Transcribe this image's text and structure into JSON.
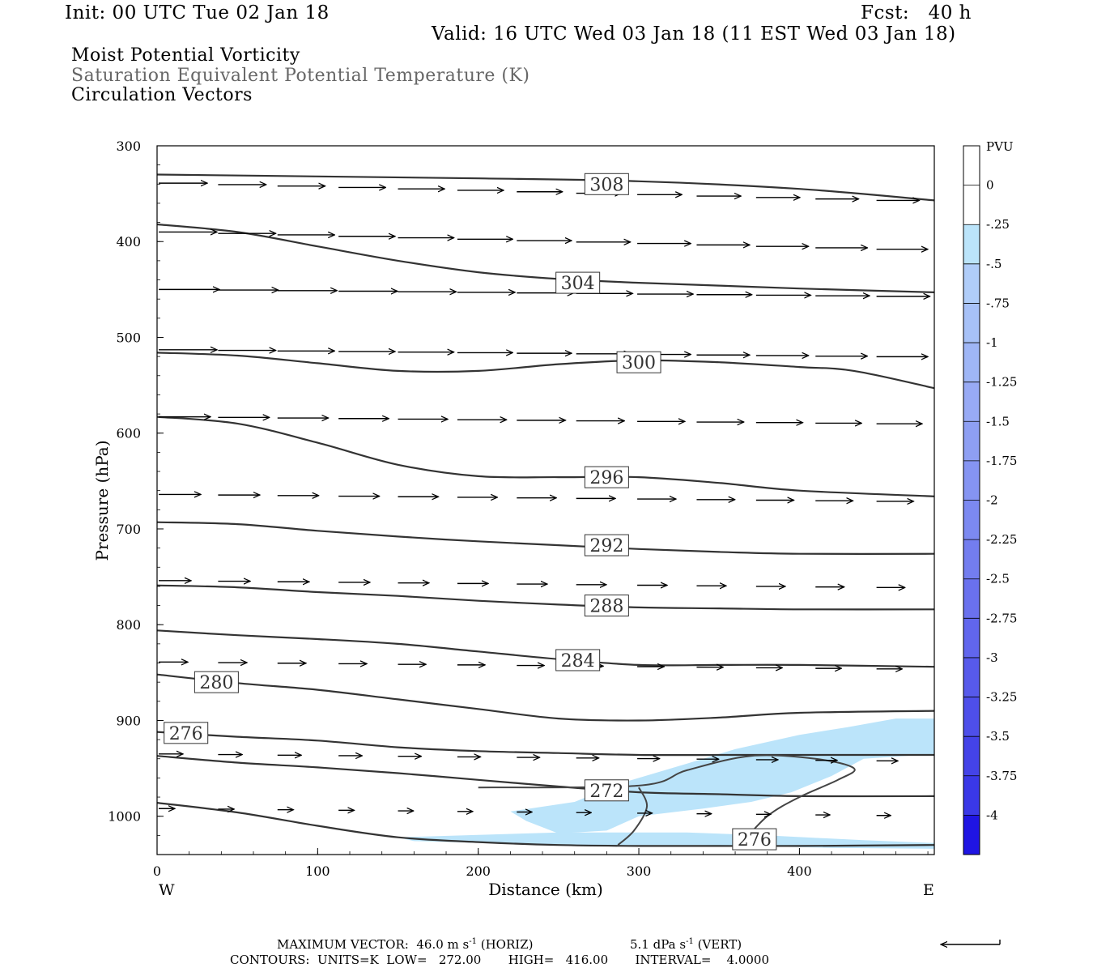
{
  "header": {
    "init": "Init: 00 UTC Tue 02 Jan 18",
    "fcst": "Fcst:   40 h",
    "valid": "Valid: 16 UTC Wed 03 Jan 18 (11 EST Wed 03 Jan 18)",
    "field1": "Moist Potential Vorticity",
    "field2": "Saturation Equivalent Potential Temperature (K)",
    "field3": "Circulation Vectors"
  },
  "footer": {
    "max_vector": "MAXIMUM VECTOR:  46.0 m s",
    "max_vector_exp": "-1",
    "max_vector_h": " (HORIZ)",
    "max_vector_v": "5.1 dPa s",
    "max_vector_v_exp": "-1",
    "max_vector_v2": " (VERT)",
    "contours": "CONTOURS:  UNITS=K  LOW=   272.00       HIGH=   416.00       INTERVAL=    4.0000"
  },
  "chart_data": {
    "type": "contour",
    "title": "Moist Potential Vorticity / Saturation Equivalent Potential Temperature (K) / Circulation Vectors",
    "xlabel": "Distance (km)",
    "ylabel": "Pressure (hPa)",
    "xlim": [
      0,
      484
    ],
    "ylim": [
      300,
      1040
    ],
    "y_scale": "linear (inverted)",
    "x_ticks": [
      "0",
      "100",
      "200",
      "300",
      "400"
    ],
    "y_ticks": [
      "300",
      "400",
      "500",
      "600",
      "700",
      "800",
      "900",
      "1000"
    ],
    "x_end_labels": {
      "left": "W",
      "right": "E"
    },
    "colorbar": {
      "label": "PVU",
      "ticks": [
        "0",
        "-.25",
        "-.5",
        "-.75",
        "-1",
        "-1.25",
        "-1.5",
        "-1.75",
        "-2",
        "-2.25",
        "-2.5",
        "-2.75",
        "-3",
        "-3.25",
        "-3.5",
        "-3.75",
        "-4"
      ],
      "colors": [
        "#ffffff",
        "#ffffff",
        "#bbe4fa",
        "#b0cdf9",
        "#a7c1f7",
        "#9fb6f6",
        "#98aaf5",
        "#8e9ff3",
        "#8594f2",
        "#7c89f1",
        "#737def",
        "#6a71ee",
        "#6166ed",
        "#575aeb",
        "#4e4fea",
        "#4443e8",
        "#3a38e7",
        "#1f15e3"
      ]
    },
    "theta_contours": [
      {
        "label": "308",
        "points": [
          [
            0,
            330
          ],
          [
            100,
            332
          ],
          [
            200,
            334
          ],
          [
            300,
            337
          ],
          [
            400,
            345
          ],
          [
            484,
            357
          ]
        ]
      },
      {
        "label": "304",
        "points": [
          [
            0,
            382
          ],
          [
            50,
            390
          ],
          [
            100,
            405
          ],
          [
            150,
            420
          ],
          [
            200,
            432
          ],
          [
            250,
            439
          ],
          [
            300,
            443
          ],
          [
            350,
            446
          ],
          [
            400,
            449
          ],
          [
            484,
            453
          ]
        ]
      },
      {
        "label": "300",
        "points": [
          [
            0,
            516
          ],
          [
            50,
            519
          ],
          [
            100,
            527
          ],
          [
            150,
            535
          ],
          [
            200,
            535
          ],
          [
            250,
            528
          ],
          [
            300,
            524
          ],
          [
            350,
            526
          ],
          [
            400,
            531
          ],
          [
            434,
            535
          ],
          [
            484,
            553
          ]
        ]
      },
      {
        "label": "296",
        "points": [
          [
            0,
            583
          ],
          [
            50,
            590
          ],
          [
            100,
            610
          ],
          [
            150,
            633
          ],
          [
            200,
            645
          ],
          [
            250,
            646
          ],
          [
            300,
            646
          ],
          [
            350,
            652
          ],
          [
            400,
            660
          ],
          [
            484,
            666
          ]
        ]
      },
      {
        "label": "292",
        "points": [
          [
            0,
            693
          ],
          [
            50,
            695
          ],
          [
            100,
            702
          ],
          [
            150,
            708
          ],
          [
            200,
            713
          ],
          [
            250,
            717
          ],
          [
            300,
            721
          ],
          [
            350,
            724
          ],
          [
            400,
            726
          ],
          [
            484,
            726
          ]
        ]
      },
      {
        "label": "288",
        "points": [
          [
            0,
            759
          ],
          [
            50,
            761
          ],
          [
            100,
            766
          ],
          [
            150,
            770
          ],
          [
            200,
            775
          ],
          [
            250,
            779
          ],
          [
            300,
            782
          ],
          [
            350,
            783
          ],
          [
            400,
            784
          ],
          [
            484,
            784
          ]
        ]
      },
      {
        "label": "284",
        "points": [
          [
            0,
            806
          ],
          [
            50,
            811
          ],
          [
            100,
            815
          ],
          [
            150,
            820
          ],
          [
            200,
            828
          ],
          [
            250,
            836
          ],
          [
            300,
            842
          ],
          [
            350,
            842
          ],
          [
            400,
            842
          ],
          [
            484,
            844
          ]
        ]
      },
      {
        "label": "280",
        "points": [
          [
            0,
            852
          ],
          [
            50,
            861
          ],
          [
            100,
            868
          ],
          [
            150,
            878
          ],
          [
            200,
            888
          ],
          [
            250,
            898
          ],
          [
            300,
            900
          ],
          [
            350,
            897
          ],
          [
            400,
            892
          ],
          [
            484,
            890
          ]
        ]
      },
      {
        "label": "276",
        "points": [
          [
            0,
            912
          ],
          [
            50,
            917
          ],
          [
            100,
            921
          ],
          [
            150,
            928
          ],
          [
            200,
            932
          ],
          [
            250,
            934
          ],
          [
            300,
            936
          ],
          [
            350,
            936
          ],
          [
            400,
            936
          ],
          [
            484,
            936
          ]
        ]
      },
      {
        "label": "272",
        "points": [
          [
            0,
            937
          ],
          [
            50,
            944
          ],
          [
            100,
            949
          ],
          [
            150,
            955
          ],
          [
            200,
            962
          ],
          [
            250,
            969
          ],
          [
            300,
            975
          ],
          [
            350,
            977
          ],
          [
            400,
            979
          ],
          [
            484,
            979
          ]
        ]
      },
      {
        "label": "",
        "points": [
          [
            0,
            986
          ],
          [
            50,
            996
          ],
          [
            100,
            1010
          ],
          [
            150,
            1022
          ],
          [
            200,
            1027
          ],
          [
            250,
            1030
          ],
          [
            300,
            1031
          ],
          [
            350,
            1031
          ],
          [
            400,
            1031
          ],
          [
            484,
            1030
          ]
        ]
      }
    ],
    "vector_rows_hpa": [
      339,
      390,
      450,
      513,
      583,
      664,
      754,
      839,
      935,
      992
    ],
    "pv_negative_regions": [
      "-0.25 to -0.5 PVU near 900-1030 hPa, 220-484 km"
    ]
  }
}
